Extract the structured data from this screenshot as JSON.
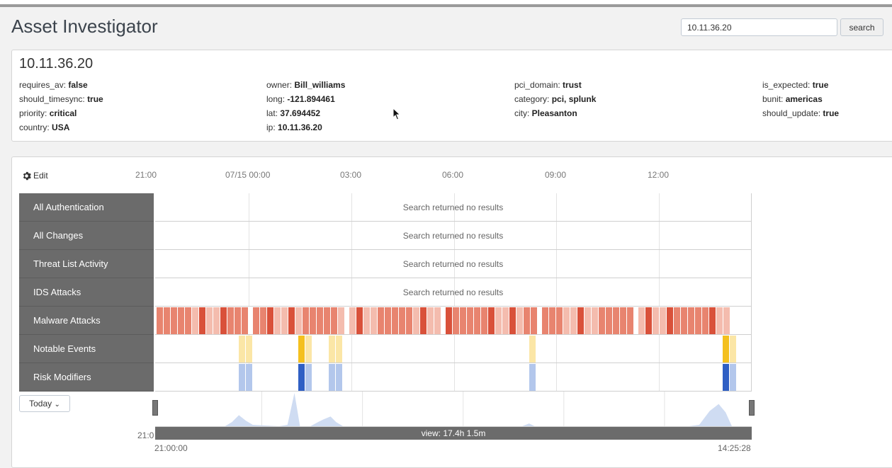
{
  "app": {
    "title": "Asset Investigator",
    "search_value": "10.11.36.20",
    "search_button": "search"
  },
  "asset": {
    "title": "10.11.36.20",
    "attributes": [
      {
        "key": "requires_av",
        "value": "false"
      },
      {
        "key": "should_timesync",
        "value": "true"
      },
      {
        "key": "priority",
        "value": "critical"
      },
      {
        "key": "country",
        "value": "USA"
      },
      {
        "key": "owner",
        "value": "Bill_williams"
      },
      {
        "key": "long",
        "value": "-121.894461"
      },
      {
        "key": "lat",
        "value": "37.694452"
      },
      {
        "key": "ip",
        "value": "10.11.36.20"
      },
      {
        "key": "pci_domain",
        "value": "trust"
      },
      {
        "key": "category",
        "value": "pci, splunk"
      },
      {
        "key": "city",
        "value": "Pleasanton"
      },
      {
        "key": "is_expected",
        "value": "true"
      },
      {
        "key": "bunit",
        "value": "americas"
      },
      {
        "key": "should_update",
        "value": "true"
      }
    ]
  },
  "timeline": {
    "edit_label": "Edit",
    "axis_labels": [
      "21:00",
      "07/15 00:00",
      "03:00",
      "06:00",
      "09:00",
      "12:00"
    ],
    "no_results_text": "Search returned no results",
    "rows": [
      {
        "label": "All Authentication"
      },
      {
        "label": "All Changes"
      },
      {
        "label": "Threat List Activity"
      },
      {
        "label": "IDS Attacks"
      },
      {
        "label": "Malware Attacks"
      },
      {
        "label": "Notable Events"
      },
      {
        "label": "Risk Modifiers"
      }
    ],
    "colors": {
      "malware_dark": "#d9513a",
      "malware_mid": "#e8846f",
      "malware_light": "#f4bcae",
      "notable_dark": "#f4c01e",
      "notable_light": "#fbe6a6",
      "risk_dark": "#2f5fc4",
      "risk_light": "#b3c7ec",
      "sparkline": "#cfdcf2"
    },
    "today_label": "Today",
    "view_label": "view: 17.4h 1.5m",
    "overview_truncated_label": "21:0",
    "range_start": "21:00:00",
    "range_end": "14:25:28"
  }
}
